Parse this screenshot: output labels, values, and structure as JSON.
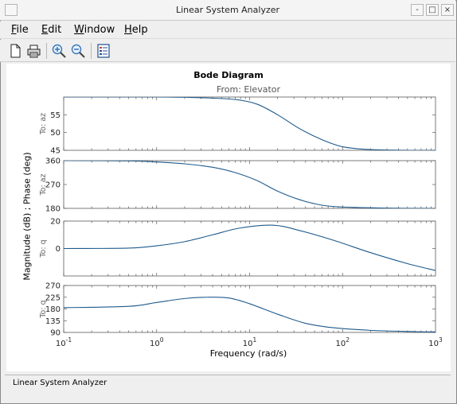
{
  "window": {
    "title": "Linear System Analyzer",
    "status": "Linear System Analyzer",
    "title_buttons": [
      "-",
      "□",
      "×"
    ]
  },
  "menu": [
    {
      "label": "File",
      "mnemonic": "F",
      "rest": "ile"
    },
    {
      "label": "Edit",
      "mnemonic": "E",
      "rest": "dit"
    },
    {
      "label": "Window",
      "mnemonic": "W",
      "rest": "indow"
    },
    {
      "label": "Help",
      "mnemonic": "H",
      "rest": "elp"
    }
  ],
  "toolbar": {
    "icons": [
      "new-document-icon",
      "print-icon",
      "zoom-in-icon",
      "zoom-out-icon",
      "plot-configurations-icon"
    ]
  },
  "chart_data": {
    "type": "line",
    "title": "Bode Diagram",
    "subtitle": "From: Elevator",
    "ylabel": "Magnitude (dB) ; Phase (deg)",
    "xlabel": "Frequency  (rad/s)",
    "xscale": "log",
    "xlim": [
      0.1,
      1000
    ],
    "x_ticks": [
      {
        "base": "10",
        "exp": "-1"
      },
      {
        "base": "10",
        "exp": "0"
      },
      {
        "base": "10",
        "exp": "1"
      },
      {
        "base": "10",
        "exp": "2"
      },
      {
        "base": "10",
        "exp": "3"
      }
    ],
    "line_color": "#1f5a8c",
    "grid": false,
    "panels": [
      {
        "name": "magnitude-az",
        "channel": "To: az",
        "ylim": [
          45,
          60
        ],
        "yticks": [
          45,
          50,
          55
        ],
        "points": [
          [
            0.1,
            60
          ],
          [
            1,
            60
          ],
          [
            3,
            59.8
          ],
          [
            7,
            59.3
          ],
          [
            12,
            58
          ],
          [
            20,
            55
          ],
          [
            35,
            51
          ],
          [
            60,
            48
          ],
          [
            100,
            46
          ],
          [
            200,
            45.2
          ],
          [
            500,
            45.0
          ],
          [
            1000,
            45.0
          ]
        ]
      },
      {
        "name": "phase-az",
        "channel": "To: az",
        "ylim": [
          180,
          360
        ],
        "yticks": [
          180,
          270,
          360
        ],
        "points": [
          [
            0.1,
            360
          ],
          [
            0.5,
            359
          ],
          [
            1,
            355
          ],
          [
            2,
            348
          ],
          [
            4,
            335
          ],
          [
            7,
            315
          ],
          [
            12,
            285
          ],
          [
            20,
            245
          ],
          [
            35,
            212
          ],
          [
            60,
            192
          ],
          [
            100,
            185
          ],
          [
            300,
            181
          ],
          [
            1000,
            180
          ]
        ]
      },
      {
        "name": "magnitude-q",
        "channel": "To: q",
        "ylim": [
          -20,
          20
        ],
        "yticks": [
          0,
          20
        ],
        "points": [
          [
            0.1,
            0
          ],
          [
            0.5,
            0.3
          ],
          [
            1,
            2
          ],
          [
            2,
            5
          ],
          [
            4,
            10
          ],
          [
            8,
            15
          ],
          [
            18,
            17
          ],
          [
            35,
            13
          ],
          [
            80,
            6
          ],
          [
            200,
            -3
          ],
          [
            500,
            -11
          ],
          [
            1000,
            -16
          ]
        ]
      },
      {
        "name": "phase-q",
        "channel": "To: q",
        "ylim": [
          90,
          270
        ],
        "yticks": [
          90,
          135,
          180,
          225,
          270
        ],
        "points": [
          [
            0.1,
            185
          ],
          [
            0.5,
            190
          ],
          [
            1,
            205
          ],
          [
            2,
            220
          ],
          [
            3.5,
            225
          ],
          [
            6,
            222
          ],
          [
            10,
            200
          ],
          [
            20,
            160
          ],
          [
            40,
            125
          ],
          [
            80,
            108
          ],
          [
            200,
            98
          ],
          [
            600,
            93
          ],
          [
            1000,
            92
          ]
        ]
      }
    ]
  }
}
